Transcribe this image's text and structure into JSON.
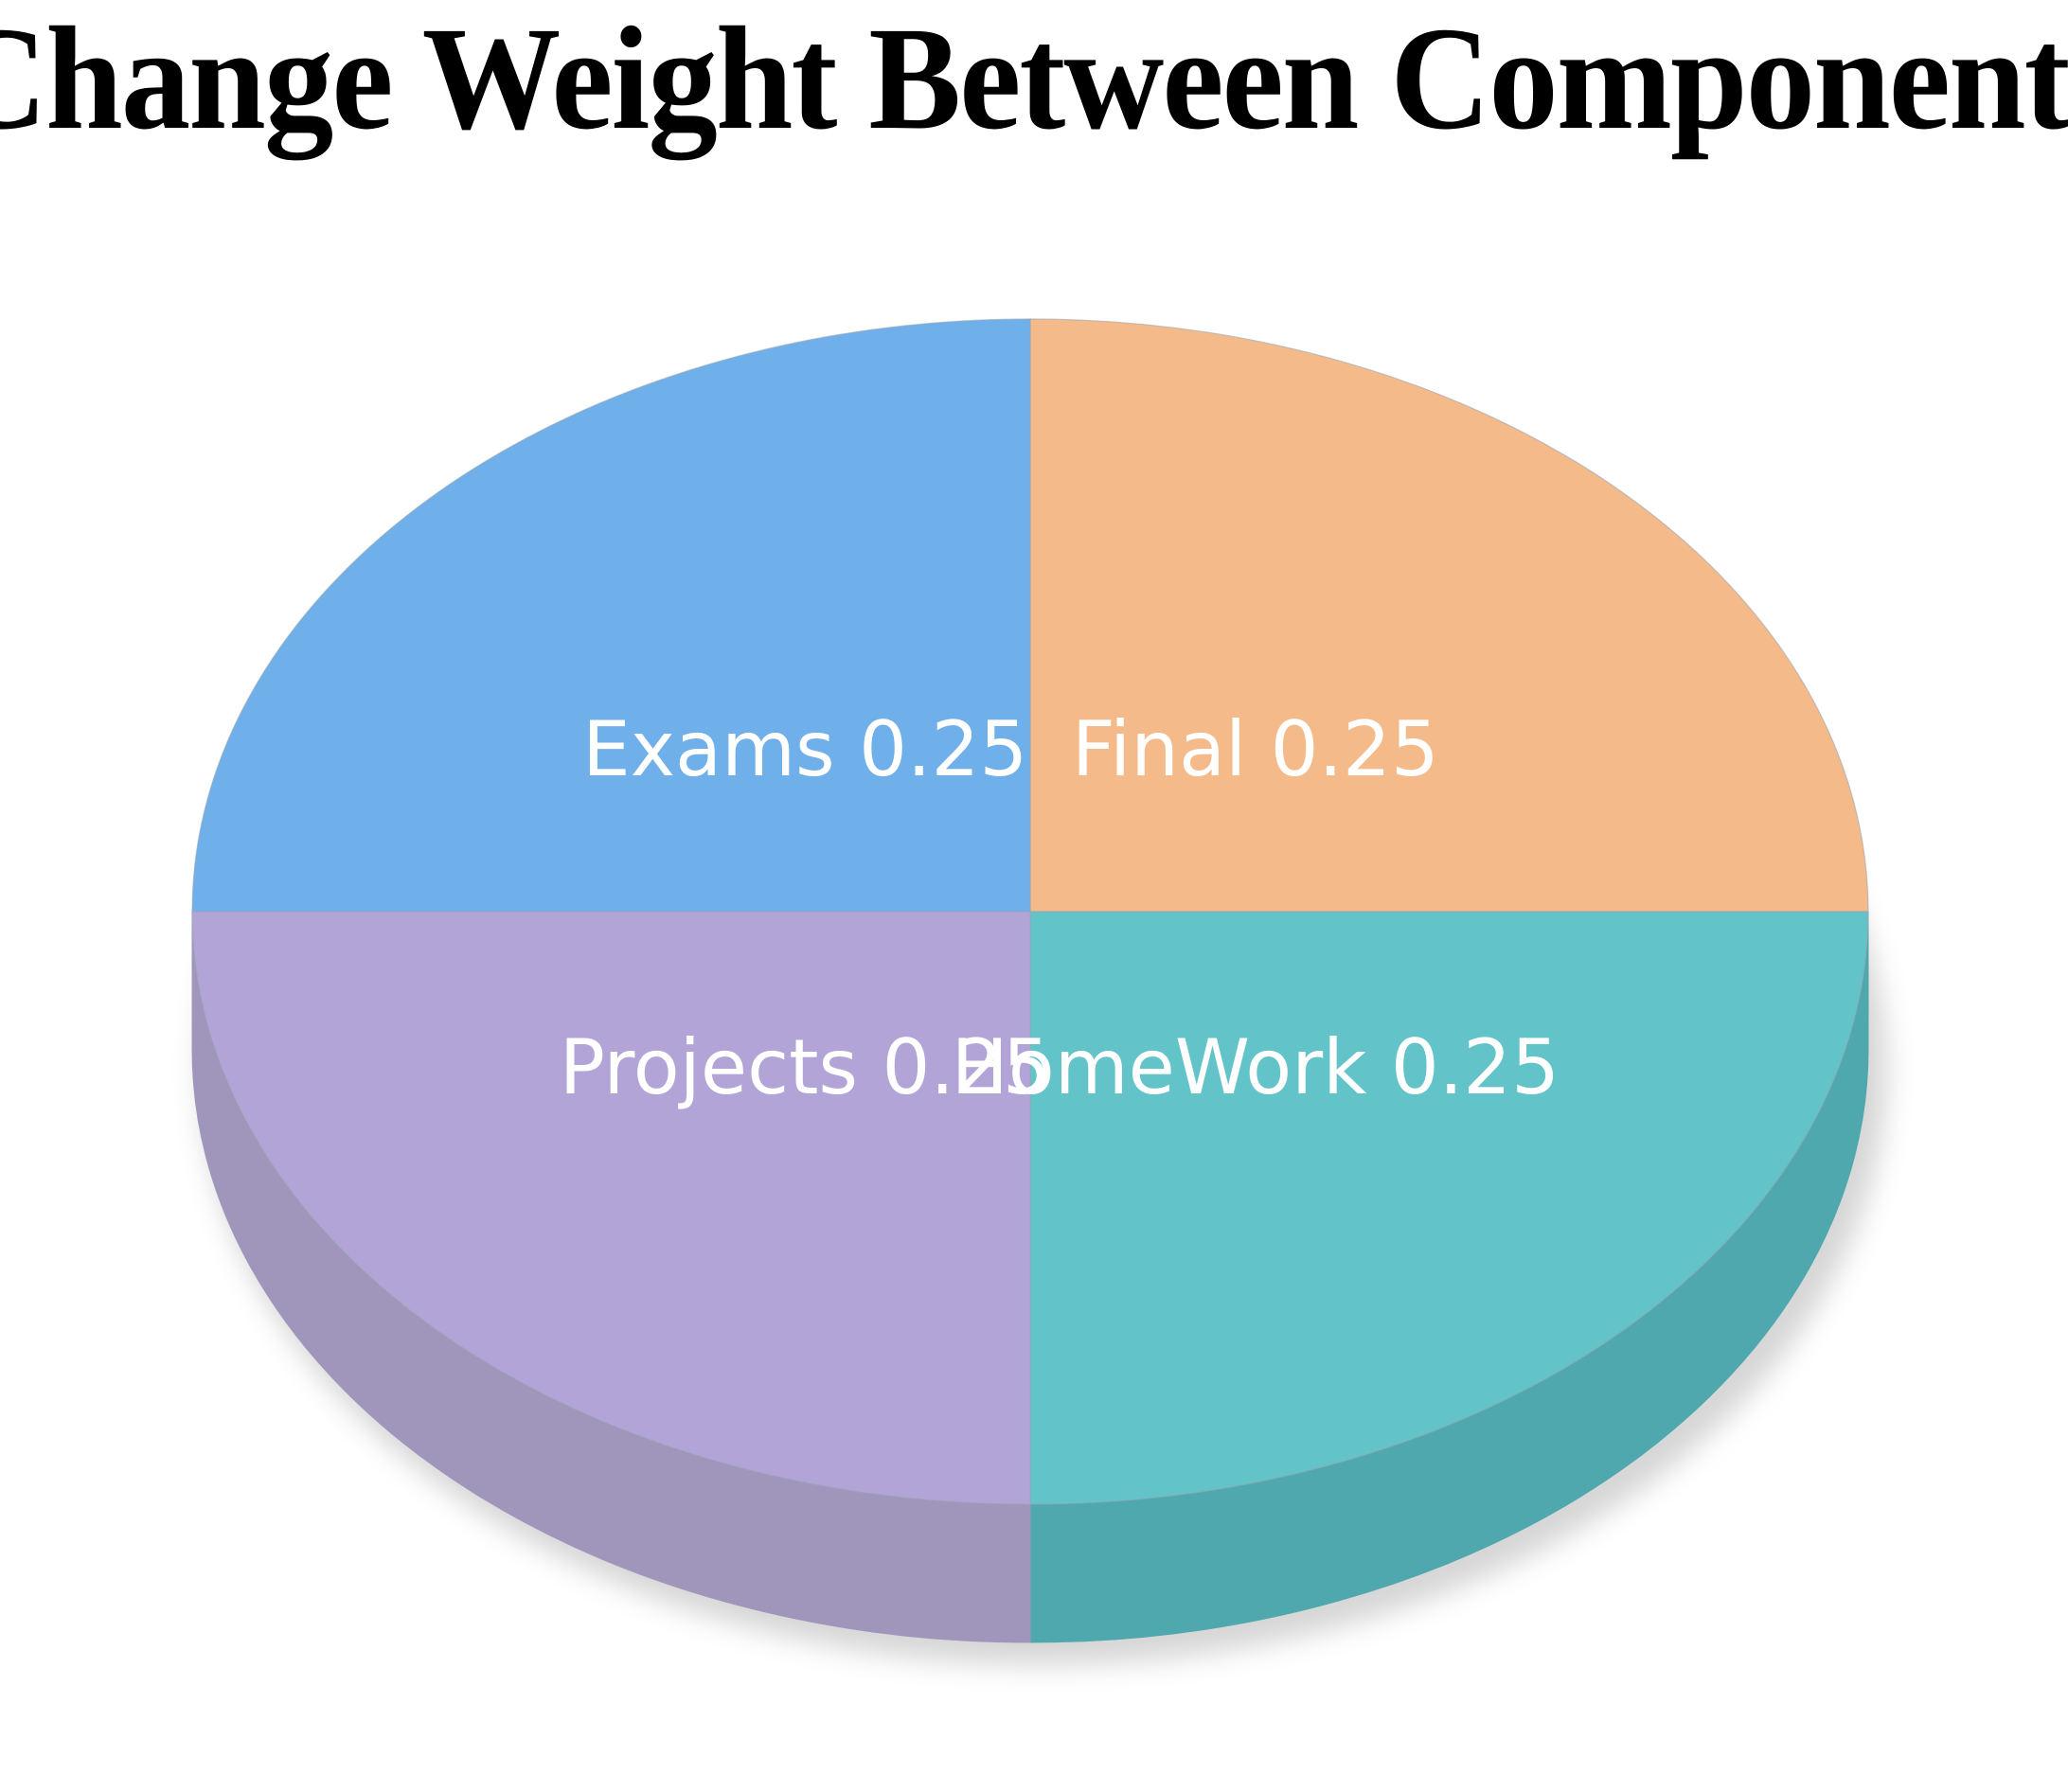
{
  "chart_data": {
    "type": "pie",
    "title": "Change Weight Between Components",
    "slices": [
      {
        "label": "Final",
        "value": 0.25,
        "color": "#f5ba8a",
        "side_color": "#d9a070"
      },
      {
        "label": "HomeWork",
        "value": 0.25,
        "color": "#62c3c8",
        "side_color": "#4fa8ad"
      },
      {
        "label": "Projects",
        "value": 0.25,
        "color": "#b3a4d8",
        "side_color": "#a096bb"
      },
      {
        "label": "Exams",
        "value": 0.25,
        "color": "#6fafea",
        "side_color": "#6a9bcb"
      }
    ],
    "style": "3d",
    "legend": "none"
  }
}
